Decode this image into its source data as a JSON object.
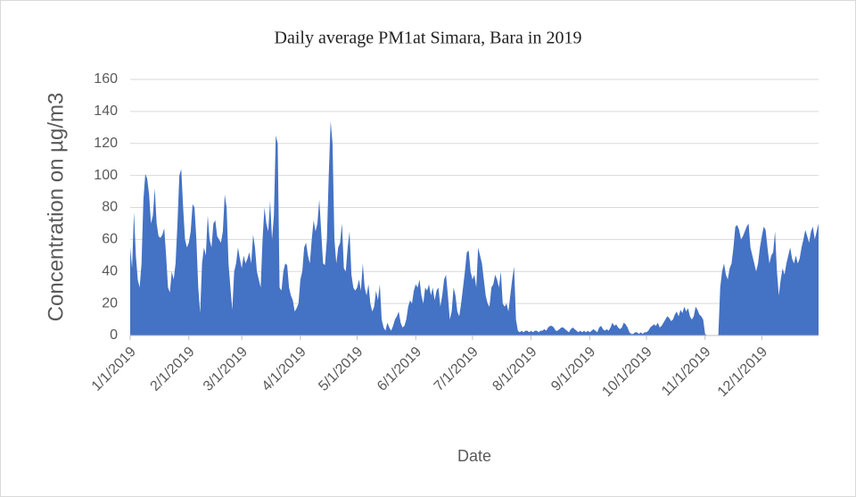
{
  "chart_data": {
    "type": "area",
    "title": "Daily average PM1at Simara, Bara in 2019",
    "x_label": "Date",
    "y_label": "Concentration on µg/m3",
    "color": "#4472c4",
    "grid": true,
    "ylim": [
      0,
      160
    ],
    "yticks": [
      0,
      20,
      40,
      60,
      80,
      100,
      120,
      140,
      160
    ],
    "categories": [
      "1/1/2019",
      null,
      null,
      null,
      null,
      null,
      null,
      null,
      null,
      null,
      null,
      null,
      null,
      null,
      null,
      null,
      null,
      null,
      null,
      null,
      null,
      null,
      null,
      null,
      null,
      null,
      null,
      null,
      null,
      null,
      null,
      "2/1/2019",
      null,
      null,
      null,
      null,
      null,
      null,
      null,
      null,
      null,
      null,
      null,
      null,
      null,
      null,
      null,
      null,
      null,
      null,
      null,
      null,
      null,
      null,
      null,
      null,
      null,
      null,
      null,
      "3/1/2019",
      null,
      null,
      null,
      null,
      null,
      null,
      null,
      null,
      null,
      null,
      null,
      null,
      null,
      null,
      null,
      null,
      null,
      null,
      null,
      null,
      null,
      null,
      null,
      null,
      null,
      null,
      null,
      null,
      null,
      null,
      "4/1/2019",
      null,
      null,
      null,
      null,
      null,
      null,
      null,
      null,
      null,
      null,
      null,
      null,
      null,
      null,
      null,
      null,
      null,
      null,
      null,
      null,
      null,
      null,
      null,
      null,
      null,
      null,
      null,
      null,
      null,
      "5/1/2019",
      null,
      null,
      null,
      null,
      null,
      null,
      null,
      null,
      null,
      null,
      null,
      null,
      null,
      null,
      null,
      null,
      null,
      null,
      null,
      null,
      null,
      null,
      null,
      null,
      null,
      null,
      null,
      null,
      null,
      null,
      "6/1/2019",
      null,
      null,
      null,
      null,
      null,
      null,
      null,
      null,
      null,
      null,
      null,
      null,
      null,
      null,
      null,
      null,
      null,
      null,
      null,
      null,
      null,
      null,
      null,
      null,
      null,
      null,
      null,
      null,
      null,
      "7/1/2019",
      null,
      null,
      null,
      null,
      null,
      null,
      null,
      null,
      null,
      null,
      null,
      null,
      null,
      null,
      null,
      null,
      null,
      null,
      null,
      null,
      null,
      null,
      null,
      null,
      null,
      null,
      null,
      null,
      null,
      null,
      "8/1/2019",
      null,
      null,
      null,
      null,
      null,
      null,
      null,
      null,
      null,
      null,
      null,
      null,
      null,
      null,
      null,
      null,
      null,
      null,
      null,
      null,
      null,
      null,
      null,
      null,
      null,
      null,
      null,
      null,
      null,
      null,
      "9/1/2019",
      null,
      null,
      null,
      null,
      null,
      null,
      null,
      null,
      null,
      null,
      null,
      null,
      null,
      null,
      null,
      null,
      null,
      null,
      null,
      null,
      null,
      null,
      null,
      null,
      null,
      null,
      null,
      null,
      null,
      "10/1/2019",
      null,
      null,
      null,
      null,
      null,
      null,
      null,
      null,
      null,
      null,
      null,
      null,
      null,
      null,
      null,
      null,
      null,
      null,
      null,
      null,
      null,
      null,
      null,
      null,
      null,
      null,
      null,
      null,
      null,
      null,
      "11/1/2019",
      null,
      null,
      null,
      null,
      null,
      null,
      null,
      null,
      null,
      null,
      null,
      null,
      null,
      null,
      null,
      null,
      null,
      null,
      null,
      null,
      null,
      null,
      null,
      null,
      null,
      null,
      null,
      null,
      null,
      "12/1/2019",
      null,
      null,
      null,
      null,
      null,
      null,
      null,
      null,
      null,
      null,
      null,
      null,
      null,
      null,
      null,
      null,
      null,
      null,
      null,
      null,
      null,
      null,
      null,
      null,
      null,
      null,
      null,
      null,
      null,
      null
    ],
    "values": [
      55,
      42,
      77,
      50,
      35,
      30,
      45,
      85,
      101,
      98,
      88,
      70,
      75,
      92,
      70,
      62,
      61,
      63,
      67,
      50,
      30,
      27,
      40,
      35,
      45,
      70,
      100,
      104,
      80,
      60,
      55,
      58,
      65,
      82,
      80,
      60,
      30,
      14,
      45,
      55,
      50,
      75,
      60,
      55,
      70,
      72,
      62,
      60,
      58,
      65,
      88,
      80,
      45,
      30,
      16,
      40,
      45,
      55,
      48,
      42,
      50,
      45,
      48,
      52,
      45,
      63,
      55,
      40,
      35,
      30,
      60,
      80,
      70,
      65,
      84,
      60,
      75,
      125,
      120,
      30,
      28,
      40,
      45,
      44,
      30,
      25,
      22,
      15,
      17,
      20,
      35,
      40,
      55,
      58,
      50,
      45,
      60,
      72,
      65,
      70,
      85,
      65,
      45,
      44,
      60,
      100,
      134,
      120,
      60,
      45,
      55,
      58,
      70,
      42,
      40,
      55,
      65,
      38,
      30,
      28,
      30,
      35,
      28,
      45,
      30,
      25,
      32,
      20,
      15,
      18,
      28,
      22,
      32,
      10,
      5,
      3,
      8,
      5,
      3,
      6,
      10,
      12,
      15,
      8,
      5,
      6,
      10,
      18,
      22,
      20,
      28,
      32,
      30,
      35,
      25,
      20,
      30,
      28,
      32,
      25,
      30,
      22,
      28,
      30,
      18,
      25,
      35,
      38,
      25,
      10,
      15,
      30,
      25,
      15,
      12,
      20,
      30,
      40,
      52,
      53,
      40,
      35,
      38,
      30,
      55,
      50,
      45,
      35,
      25,
      20,
      18,
      30,
      32,
      38,
      35,
      30,
      40,
      20,
      18,
      20,
      15,
      25,
      35,
      43,
      10,
      3,
      2,
      3,
      2,
      3,
      3,
      2,
      3,
      2,
      3,
      3,
      2,
      3,
      3,
      4,
      3,
      5,
      6,
      6,
      5,
      3,
      3,
      4,
      5,
      5,
      4,
      3,
      2,
      4,
      5,
      4,
      3,
      2,
      3,
      2,
      3,
      2,
      3,
      2,
      3,
      4,
      3,
      2,
      5,
      6,
      4,
      3,
      4,
      3,
      5,
      8,
      6,
      7,
      5,
      4,
      5,
      8,
      7,
      5,
      2,
      1,
      1,
      2,
      2,
      1,
      2,
      1,
      2,
      2,
      3,
      5,
      6,
      7,
      6,
      8,
      5,
      6,
      8,
      10,
      12,
      11,
      9,
      10,
      13,
      15,
      12,
      16,
      14,
      18,
      15,
      17,
      12,
      10,
      12,
      18,
      16,
      13,
      12,
      10,
      1,
      0,
      0,
      0,
      0,
      0,
      0,
      0,
      30,
      40,
      45,
      38,
      35,
      42,
      45,
      55,
      68,
      69,
      66,
      60,
      62,
      65,
      68,
      70,
      55,
      50,
      45,
      40,
      45,
      55,
      62,
      68,
      66,
      55,
      45,
      50,
      52,
      65,
      40,
      25,
      35,
      42,
      38,
      45,
      50,
      55,
      48,
      45,
      50,
      45,
      48,
      55,
      60,
      66,
      62,
      58,
      65,
      68,
      60,
      65,
      70
    ]
  }
}
